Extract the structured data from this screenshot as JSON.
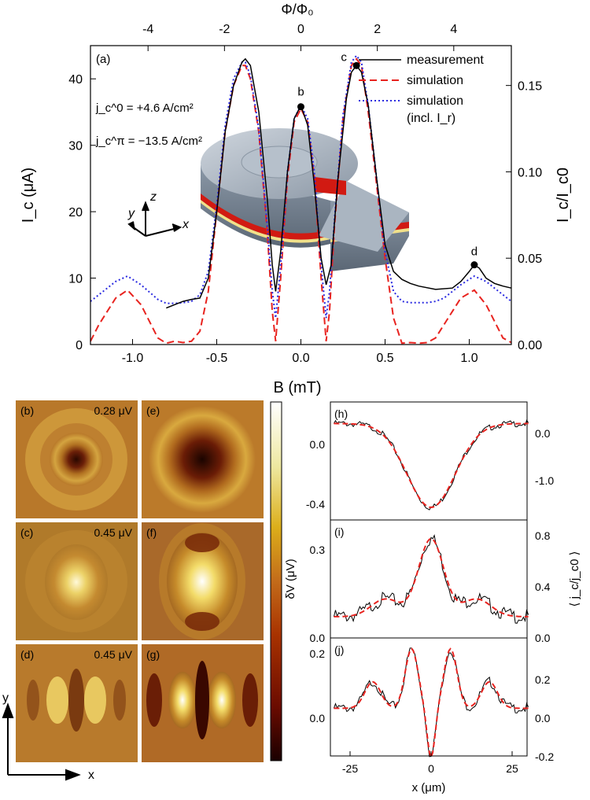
{
  "figure": {
    "top_axis_label": "Φ/Φ₀",
    "bottom_axis_label": "B (mT)",
    "left_axis_label": "I_c (μA)",
    "right_axis_label": "I_c/I_c0",
    "panel_label": "(a)",
    "annotation_j0": "j_c^0 = +4.6 A/cm²",
    "annotation_jpi": "j_c^π = −13.5 A/cm²",
    "point_labels": [
      "b",
      "c",
      "d"
    ],
    "coord_labels": {
      "x": "x",
      "y": "y",
      "z": "z"
    },
    "legend": [
      {
        "label": "measurement",
        "color": "#000000",
        "style": "solid"
      },
      {
        "label": "simulation",
        "color": "#e8231f",
        "style": "dashed"
      },
      {
        "label": "simulation",
        "sublabel": "(incl. I_r)",
        "color": "#2a2ae0",
        "style": "dotted"
      }
    ]
  },
  "images": {
    "panels": [
      {
        "label": "(b)",
        "value": "0.28 μV"
      },
      {
        "label": "(e)",
        "value": ""
      },
      {
        "label": "(c)",
        "value": "0.45 μV"
      },
      {
        "label": "(f)",
        "value": ""
      },
      {
        "label": "(d)",
        "value": "0.45 μV"
      },
      {
        "label": "(g)",
        "value": ""
      }
    ],
    "axis_x": "x",
    "axis_y": "y"
  },
  "linescans": {
    "panels": [
      "(h)",
      "(i)",
      "(j)"
    ],
    "left_axis_label": "δV (μV)",
    "right_axis_label": "⟨ j_c/j_c0 ⟩",
    "x_axis_label": "x (μm)",
    "x_ticks": [
      "-25",
      "0",
      "25"
    ],
    "h_left_ticks": [
      "0.0",
      "-0.4"
    ],
    "h_right_ticks": [
      "0.0",
      "-1.0"
    ],
    "i_left_ticks": [
      "0.3",
      "0.0"
    ],
    "i_right_ticks": [
      "0.8",
      "0.4",
      "0.0"
    ],
    "j_left_ticks": [
      "0.2",
      "0.0"
    ],
    "j_right_ticks": [
      "0.2",
      "0.0",
      "-0.2"
    ]
  },
  "chart_data": [
    {
      "type": "line",
      "title": "",
      "xlabel": "B (mT)",
      "ylabel": "I_c (μA)",
      "xlim": [
        -1.25,
        1.25
      ],
      "ylim": [
        0,
        45
      ],
      "x_ticks": [
        -1.0,
        -0.5,
        0.0,
        0.5,
        1.0
      ],
      "y_ticks": [
        0,
        10,
        20,
        30,
        40
      ],
      "top_axis": {
        "label": "Φ/Φ₀",
        "ticks": [
          -4,
          -2,
          0,
          2,
          4
        ],
        "scale_B_per_unit": 0.227
      },
      "right_axis": {
        "label": "I_c/I_c0",
        "ticks": [
          0.0,
          0.05,
          0.1,
          0.15
        ],
        "scale_uA_per_unit": 260
      },
      "grid": false,
      "legend_position": "top-right",
      "series": [
        {
          "name": "measurement",
          "x": [
            -0.8,
            -0.75,
            -0.7,
            -0.65,
            -0.6,
            -0.55,
            -0.5,
            -0.45,
            -0.4,
            -0.35,
            -0.33,
            -0.3,
            -0.25,
            -0.2,
            -0.17,
            -0.15,
            -0.12,
            -0.08,
            -0.04,
            0.0,
            0.04,
            0.08,
            0.12,
            0.15,
            0.18,
            0.22,
            0.27,
            0.3,
            0.33,
            0.36,
            0.4,
            0.45,
            0.5,
            0.55,
            0.6,
            0.65,
            0.7,
            0.8,
            0.9,
            0.95,
            1.0,
            1.03,
            1.06,
            1.1,
            1.15,
            1.2,
            1.25
          ],
          "y": [
            5.5,
            6.0,
            6.5,
            6.8,
            7.0,
            10,
            20,
            32,
            39,
            42.5,
            43,
            42,
            35,
            22,
            12,
            8,
            14,
            26,
            34,
            36,
            33,
            24,
            13,
            9,
            12,
            25,
            37,
            41,
            42,
            41,
            36,
            25,
            15,
            11,
            9.8,
            9.2,
            8.8,
            8.3,
            8.5,
            9.5,
            11,
            12,
            11.5,
            10,
            9.2,
            8.8,
            8.5
          ]
        },
        {
          "name": "simulation",
          "x": [
            -1.25,
            -1.2,
            -1.1,
            -1.03,
            -0.95,
            -0.85,
            -0.8,
            -0.75,
            -0.7,
            -0.65,
            -0.6,
            -0.55,
            -0.5,
            -0.45,
            -0.4,
            -0.35,
            -0.33,
            -0.3,
            -0.25,
            -0.2,
            -0.17,
            -0.15,
            -0.12,
            -0.08,
            -0.04,
            0.0,
            0.04,
            0.08,
            0.12,
            0.15,
            0.17,
            0.2,
            0.25,
            0.3,
            0.33,
            0.36,
            0.4,
            0.45,
            0.5,
            0.55,
            0.6,
            0.65,
            0.7,
            0.75,
            0.8,
            0.85,
            0.95,
            1.03,
            1.1,
            1.2,
            1.25
          ],
          "y": [
            0.5,
            3,
            7,
            8.2,
            6,
            1,
            0.2,
            0.5,
            0.3,
            0.5,
            2,
            8,
            20,
            32,
            39,
            42,
            42,
            40,
            32,
            17,
            5,
            0.5,
            10,
            25,
            33.5,
            35.5,
            33.5,
            25,
            10,
            0.5,
            5,
            18,
            34,
            42,
            43,
            42,
            35,
            24,
            13,
            4,
            0.2,
            0.3,
            0.2,
            0.3,
            1,
            3,
            7,
            8.2,
            6,
            1,
            0.3
          ]
        },
        {
          "name": "simulation",
          "x": [
            -1.25,
            -1.2,
            -1.1,
            -1.03,
            -0.95,
            -0.85,
            -0.8,
            -0.75,
            -0.7,
            -0.65,
            -0.6,
            -0.55,
            -0.5,
            -0.45,
            -0.4,
            -0.35,
            -0.33,
            -0.3,
            -0.25,
            -0.2,
            -0.17,
            -0.15,
            -0.12,
            -0.08,
            -0.04,
            0.0,
            0.04,
            0.08,
            0.12,
            0.15,
            0.17,
            0.2,
            0.25,
            0.3,
            0.33,
            0.36,
            0.4,
            0.45,
            0.5,
            0.55,
            0.6,
            0.65,
            0.7,
            0.75,
            0.8,
            0.85,
            0.95,
            1.03,
            1.1,
            1.2,
            1.25
          ],
          "y": [
            6.5,
            7.5,
            9.5,
            10.3,
            9,
            6.8,
            6.2,
            6.2,
            6.3,
            6.5,
            7.5,
            11,
            21,
            33,
            40,
            42.5,
            42.5,
            40.5,
            32.5,
            18,
            8,
            4,
            12,
            26,
            34,
            36,
            34,
            26,
            12,
            4,
            8,
            19,
            34.5,
            42.5,
            43.5,
            42.5,
            36,
            25,
            14,
            8,
            6.5,
            6.3,
            6.3,
            6.3,
            6.5,
            7,
            9,
            10.3,
            9.5,
            7.5,
            6.5
          ]
        }
      ],
      "markers": [
        {
          "label": "b",
          "x": 0.0,
          "y": 35.8
        },
        {
          "label": "c",
          "x": 0.33,
          "y": 42
        },
        {
          "label": "d",
          "x": 1.03,
          "y": 12
        }
      ]
    }
  ]
}
